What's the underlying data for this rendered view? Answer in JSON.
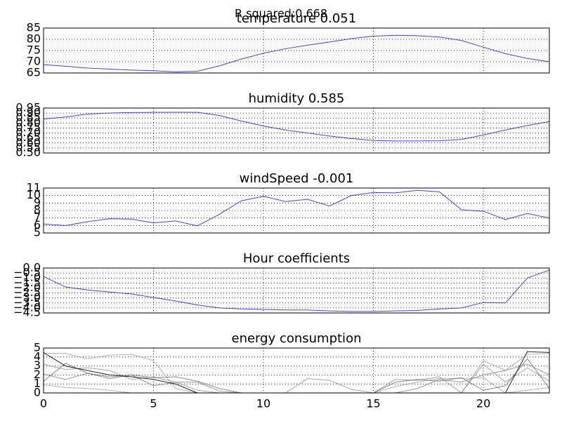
{
  "title": "R squared:0.668",
  "chart_data": [
    {
      "type": "line",
      "title": "temperature 0.051",
      "color": "#0000ff",
      "grid": true,
      "x": [
        0,
        1,
        2,
        3,
        4,
        5,
        6,
        7,
        8,
        9,
        10,
        11,
        12,
        13,
        14,
        15,
        16,
        17,
        18,
        19,
        20,
        21,
        22,
        23
      ],
      "values": [
        68.7,
        68,
        67.2,
        66.7,
        66.3,
        66,
        65.5,
        65.8,
        68.2,
        71.2,
        73.8,
        75.8,
        77.4,
        78.8,
        80.3,
        81.4,
        81.8,
        81.6,
        81,
        79.5,
        76.5,
        73.6,
        71.5,
        70
      ],
      "xlim": [
        0,
        23
      ],
      "xticks": [
        0,
        5,
        10,
        15,
        20
      ],
      "ylim": [
        65,
        85
      ],
      "yticks": [
        65,
        70,
        75,
        80,
        85
      ]
    },
    {
      "type": "line",
      "title": "humidity 0.585",
      "color": "#0000ff",
      "grid": true,
      "x": [
        0,
        1,
        2,
        3,
        4,
        5,
        6,
        7,
        8,
        9,
        10,
        11,
        12,
        13,
        14,
        15,
        16,
        17,
        18,
        19,
        20,
        21,
        22,
        23
      ],
      "values": [
        0.84,
        0.86,
        0.89,
        0.9,
        0.905,
        0.907,
        0.908,
        0.907,
        0.875,
        0.82,
        0.77,
        0.73,
        0.7,
        0.67,
        0.645,
        0.625,
        0.62,
        0.62,
        0.622,
        0.635,
        0.68,
        0.73,
        0.775,
        0.815
      ],
      "xlim": [
        0,
        23
      ],
      "xticks": [
        0,
        5,
        10,
        15,
        20
      ],
      "ylim": [
        0.5,
        0.95
      ],
      "yticks": [
        {
          "value": 0.5,
          "label": "0.50"
        },
        0.55,
        {
          "value": 0.6,
          "label": "0.60"
        },
        0.65,
        {
          "value": 0.7,
          "label": "0.70"
        },
        0.75,
        {
          "value": 0.8,
          "label": "0.80"
        },
        0.85,
        {
          "value": 0.9,
          "label": "0.90"
        },
        0.95
      ]
    },
    {
      "type": "line",
      "title": "windSpeed -0.001",
      "color": "#0000ff",
      "grid": true,
      "x": [
        0,
        1,
        2,
        3,
        4,
        5,
        6,
        7,
        8,
        9,
        10,
        11,
        12,
        13,
        14,
        15,
        16,
        17,
        18,
        19,
        20,
        21,
        22,
        23
      ],
      "values": [
        6.2,
        6.0,
        6.5,
        6.9,
        6.85,
        6.35,
        6.6,
        5.95,
        7.5,
        9.3,
        9.9,
        9.2,
        9.5,
        8.6,
        10.0,
        10.4,
        10.35,
        10.7,
        10.5,
        8.1,
        7.9,
        6.8,
        7.6,
        7.0
      ],
      "xlim": [
        0,
        23
      ],
      "xticks": [
        0,
        5,
        10,
        15,
        20
      ],
      "ylim": [
        5,
        11
      ],
      "yticks": [
        5,
        6,
        7,
        8,
        9,
        10,
        11
      ]
    },
    {
      "type": "line",
      "title": "Hour coefficients",
      "color": "#0000ff",
      "grid": true,
      "x": [
        0,
        1,
        2,
        3,
        4,
        5,
        6,
        7,
        8,
        9,
        10,
        11,
        12,
        13,
        14,
        15,
        16,
        17,
        18,
        19,
        20,
        21,
        22,
        23
      ],
      "values": [
        -0.85,
        -1.9,
        -2.2,
        -2.4,
        -2.6,
        -2.95,
        -3.3,
        -3.7,
        -4.0,
        -4.1,
        -4.15,
        -4.2,
        -4.2,
        -4.3,
        -4.35,
        -4.35,
        -4.3,
        -4.25,
        -4.1,
        -4.0,
        -3.45,
        -3.5,
        -1.0,
        -0.2
      ],
      "xlim": [
        0,
        23
      ],
      "xticks": [
        0,
        5,
        10,
        15,
        20
      ],
      "ylim": [
        -4.5,
        0
      ],
      "yticks": [
        {
          "value": -4.5,
          "label": "−4.5"
        },
        {
          "value": -4,
          "label": "−4.0"
        },
        {
          "value": -3.5,
          "label": "−3.5"
        },
        {
          "value": -3,
          "label": "−3.0"
        },
        {
          "value": -2.5,
          "label": "−2.5"
        },
        {
          "value": -2,
          "label": "−2.0"
        },
        {
          "value": -1.5,
          "label": "−1.5"
        },
        {
          "value": -1,
          "label": "−1.0"
        },
        {
          "value": -0.5,
          "label": "−0.5"
        },
        {
          "value": 0,
          "label": "0.0"
        }
      ]
    },
    {
      "type": "line",
      "title": "energy consumption",
      "grid": true,
      "x": [
        0,
        1,
        2,
        3,
        4,
        5,
        6,
        7,
        8,
        9,
        10,
        11,
        12,
        13,
        14,
        15,
        16,
        17,
        18,
        19,
        20,
        21,
        22,
        23
      ],
      "xlim": [
        0,
        23
      ],
      "xticks": [
        0,
        5,
        10,
        15,
        20
      ],
      "ylim": [
        0,
        5
      ],
      "yticks": [
        0,
        1,
        2,
        3,
        4,
        5
      ],
      "series": [
        {
          "color": "#999999",
          "values": [
            4.4,
            4.4,
            3.8,
            4.2,
            4.3,
            3.6,
            0.5,
            0,
            0,
            0,
            0,
            0,
            0,
            0,
            0,
            0,
            0,
            0,
            0,
            0,
            3.6,
            2.5,
            4.3,
            4.4
          ]
        },
        {
          "color": "#888888",
          "values": [
            3.2,
            2.6,
            2.8,
            2.5,
            1.5,
            1.8,
            1.2,
            0.3,
            0,
            0,
            0,
            0,
            1.6,
            1.4,
            0.4,
            0,
            1.5,
            1.4,
            1.8,
            0,
            3.2,
            1.2,
            2.8,
            1.3
          ]
        },
        {
          "color": "#777777",
          "values": [
            2.1,
            1.5,
            2.2,
            1.8,
            2,
            0.8,
            1.2,
            1.2,
            0.2,
            0,
            0,
            0,
            0,
            0,
            0,
            0,
            0,
            0.5,
            1.5,
            1.2,
            2,
            2.5,
            3.2,
            2
          ]
        },
        {
          "color": "#999999",
          "values": [
            0.9,
            0.6,
            0.5,
            0.3,
            0,
            0,
            0,
            0,
            0,
            0,
            0,
            0,
            0,
            0,
            0,
            0,
            0.7,
            1.2,
            1.6,
            1.6,
            1.7,
            0,
            0.3,
            0.6
          ]
        },
        {
          "color": "#666666",
          "values": [
            1.3,
            3.3,
            2.2,
            1.6,
            2.0,
            1.7,
            1.8,
            1.3,
            0.5,
            0,
            0,
            0,
            0,
            0,
            0,
            0,
            1.2,
            1.5,
            1.3,
            1.7,
            0.3,
            0.8,
            3.8,
            0.5
          ]
        },
        {
          "color": "#111111",
          "values": [
            4.5,
            3,
            2.5,
            2,
            1.8,
            1.5,
            1,
            0,
            0,
            0,
            0,
            0,
            0,
            0,
            0,
            0,
            0,
            0,
            0,
            0,
            0,
            0,
            4.6,
            4.5
          ]
        }
      ]
    }
  ]
}
